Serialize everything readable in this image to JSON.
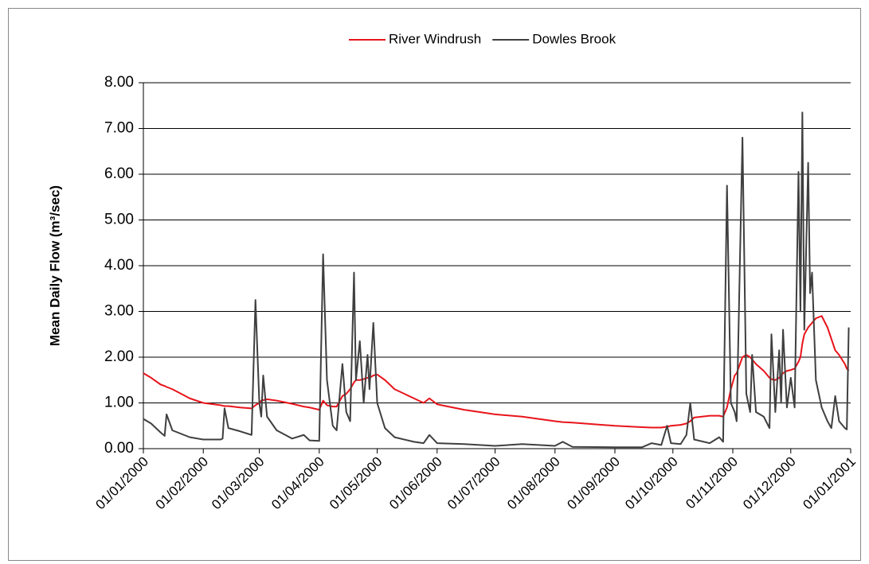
{
  "chart_data": {
    "type": "line",
    "y_label": "Mean Daily Flow (m³/sec)",
    "legend": "top",
    "grid": true,
    "ylim": [
      0,
      8
    ],
    "yticks": [
      {
        "value": 0,
        "label": "0.00"
      },
      {
        "value": 1,
        "label": "1.00"
      },
      {
        "value": 2,
        "label": "2.00"
      },
      {
        "value": 3,
        "label": "3.00"
      },
      {
        "value": 4,
        "label": "4.00"
      },
      {
        "value": 5,
        "label": "5.00"
      },
      {
        "value": 6,
        "label": "6.00"
      },
      {
        "value": 7,
        "label": "7.00"
      },
      {
        "value": 8,
        "label": "8.00"
      }
    ],
    "xlim": [
      "01/01/2000",
      "01/01/2001"
    ],
    "xticks": [
      "01/01/2000",
      "01/02/2000",
      "01/03/2000",
      "01/04/2000",
      "01/05/2000",
      "01/06/2000",
      "01/07/2000",
      "01/08/2000",
      "01/09/2000",
      "01/10/2000",
      "01/11/2000",
      "01/12/2000",
      "01/01/2001"
    ],
    "x": [
      "01/01/2000",
      "05/01/2000",
      "10/01/2000",
      "12/01/2000",
      "13/01/2000",
      "16/01/2000",
      "25/01/2000",
      "01/02/2000",
      "10/02/2000",
      "11/02/2000",
      "12/02/2000",
      "14/02/2000",
      "20/02/2000",
      "26/02/2000",
      "28/02/2000",
      "01/03/2000",
      "02/03/2000",
      "03/03/2000",
      "05/03/2000",
      "10/03/2000",
      "18/03/2000",
      "24/03/2000",
      "27/03/2000",
      "01/04/2000",
      "03/04/2000",
      "05/04/2000",
      "08/04/2000",
      "10/04/2000",
      "13/04/2000",
      "15/04/2000",
      "17/04/2000",
      "19/04/2000",
      "20/04/2000",
      "22/04/2000",
      "24/04/2000",
      "26/04/2000",
      "27/04/2000",
      "29/04/2000",
      "01/05/2000",
      "05/05/2000",
      "10/05/2000",
      "20/05/2000",
      "25/05/2000",
      "28/05/2000",
      "01/06/2000",
      "15/06/2000",
      "01/07/2000",
      "15/07/2000",
      "01/08/2000",
      "05/08/2000",
      "10/08/2000",
      "01/09/2000",
      "15/09/2000",
      "20/09/2000",
      "25/09/2000",
      "28/09/2000",
      "30/09/2000",
      "05/10/2000",
      "08/10/2000",
      "10/10/2000",
      "12/10/2000",
      "20/10/2000",
      "25/10/2000",
      "27/10/2000",
      "29/10/2000",
      "31/10/2000",
      "02/11/2000",
      "03/11/2000",
      "06/11/2000",
      "08/11/2000",
      "10/11/2000",
      "11/11/2000",
      "13/11/2000",
      "17/11/2000",
      "20/11/2000",
      "21/11/2000",
      "23/11/2000",
      "25/11/2000",
      "26/11/2000",
      "27/11/2000",
      "29/11/2000",
      "01/12/2000",
      "03/12/2000",
      "05/12/2000",
      "06/12/2000",
      "07/12/2000",
      "08/12/2000",
      "10/12/2000",
      "11/12/2000",
      "12/12/2000",
      "14/12/2000",
      "17/12/2000",
      "20/12/2000",
      "22/12/2000",
      "24/12/2000",
      "26/12/2000",
      "29/12/2000",
      "30/12/2000",
      "31/12/2000"
    ],
    "series": [
      {
        "name": "River Windrush",
        "color": "#e8141b",
        "values": [
          1.65,
          1.55,
          1.4,
          1.37,
          1.35,
          1.3,
          1.1,
          1.0,
          0.95,
          0.94,
          0.93,
          0.93,
          0.9,
          0.88,
          0.95,
          1.0,
          1.05,
          1.06,
          1.08,
          1.05,
          0.98,
          0.92,
          0.9,
          0.85,
          1.05,
          0.95,
          0.92,
          0.92,
          1.15,
          1.2,
          1.3,
          1.45,
          1.5,
          1.5,
          1.52,
          1.55,
          1.55,
          1.6,
          1.62,
          1.5,
          1.3,
          1.1,
          1.0,
          1.1,
          0.97,
          0.85,
          0.75,
          0.7,
          0.6,
          0.58,
          0.57,
          0.5,
          0.47,
          0.46,
          0.46,
          0.48,
          0.5,
          0.52,
          0.55,
          0.6,
          0.68,
          0.72,
          0.72,
          0.7,
          0.9,
          1.3,
          1.6,
          1.65,
          2.0,
          2.05,
          2.0,
          1.95,
          1.85,
          1.7,
          1.55,
          1.52,
          1.5,
          1.55,
          1.6,
          1.65,
          1.7,
          1.72,
          1.75,
          1.9,
          2.0,
          2.3,
          2.5,
          2.65,
          2.7,
          2.75,
          2.85,
          2.9,
          2.65,
          2.4,
          2.15,
          2.05,
          1.85,
          1.75,
          1.7
        ]
      },
      {
        "name": "Dowles Brook",
        "color": "#3f3f3f",
        "values": [
          0.65,
          0.55,
          0.35,
          0.28,
          0.75,
          0.4,
          0.25,
          0.2,
          0.2,
          0.22,
          0.88,
          0.45,
          0.38,
          0.3,
          3.25,
          1.0,
          0.7,
          1.6,
          0.7,
          0.4,
          0.22,
          0.3,
          0.18,
          0.17,
          4.25,
          1.5,
          0.5,
          0.4,
          1.85,
          0.8,
          0.6,
          3.85,
          1.5,
          2.35,
          1.0,
          2.05,
          1.3,
          2.75,
          1.0,
          0.45,
          0.25,
          0.15,
          0.12,
          0.3,
          0.12,
          0.1,
          0.06,
          0.1,
          0.06,
          0.15,
          0.04,
          0.03,
          0.03,
          0.12,
          0.08,
          0.5,
          0.12,
          0.1,
          0.3,
          1.0,
          0.2,
          0.12,
          0.25,
          0.15,
          5.75,
          1.0,
          0.8,
          0.6,
          6.8,
          1.2,
          0.8,
          2.05,
          0.8,
          0.7,
          0.45,
          2.5,
          0.8,
          2.15,
          1.0,
          2.6,
          0.9,
          1.55,
          0.9,
          6.05,
          3.0,
          7.35,
          2.6,
          6.25,
          3.4,
          3.85,
          1.5,
          0.9,
          0.6,
          0.45,
          1.15,
          0.6,
          0.45,
          0.42,
          2.65
        ]
      }
    ]
  }
}
